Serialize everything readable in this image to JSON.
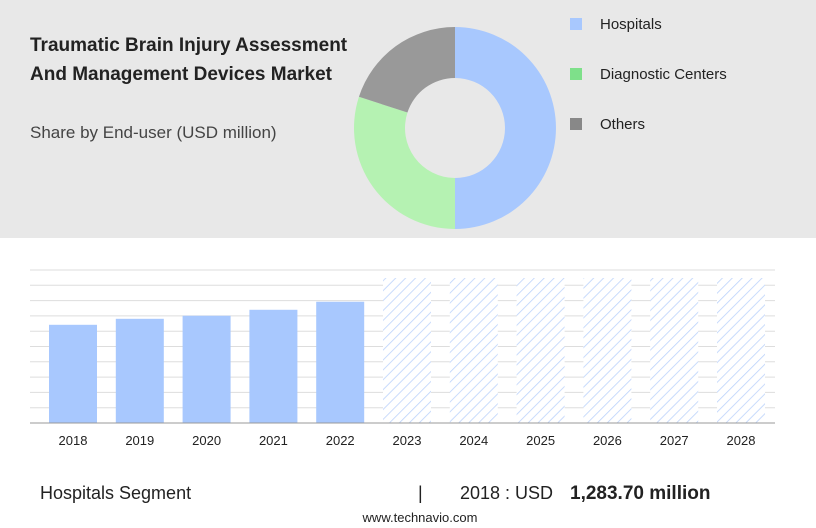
{
  "chart_data": [
    {
      "type": "pie",
      "title": "Traumatic Brain Injury Assessment And Management Devices Market",
      "subtitle": "Share by End-user (USD million)",
      "categories": [
        "Hospitals",
        "Diagnostic Centers",
        "Others"
      ],
      "values": [
        50,
        30,
        20
      ],
      "colors": [
        "#a8c8fe",
        "#b5f2b2",
        "#999999"
      ],
      "legend_colors": [
        "#a8c8fe",
        "#7ee08a",
        "#888888"
      ]
    },
    {
      "type": "bar",
      "categories": [
        "2018",
        "2019",
        "2020",
        "2021",
        "2022",
        "2023",
        "2024",
        "2025",
        "2026",
        "2027",
        "2028"
      ],
      "values": [
        1283.7,
        1362,
        1402,
        1480,
        1585,
        null,
        null,
        null,
        null,
        null,
        null
      ],
      "color": "#a8c8fe",
      "ylim": [
        0,
        2000
      ],
      "yticks": [
        0,
        200,
        400,
        600,
        800,
        1000,
        1200,
        1400,
        1600,
        1800,
        2000
      ],
      "grid": true
    }
  ],
  "footer": {
    "segment": "Hospitals Segment",
    "separator": "|",
    "year_label": "2018 : USD",
    "value": "1,283.70 million",
    "source": "www.technavio.com"
  }
}
